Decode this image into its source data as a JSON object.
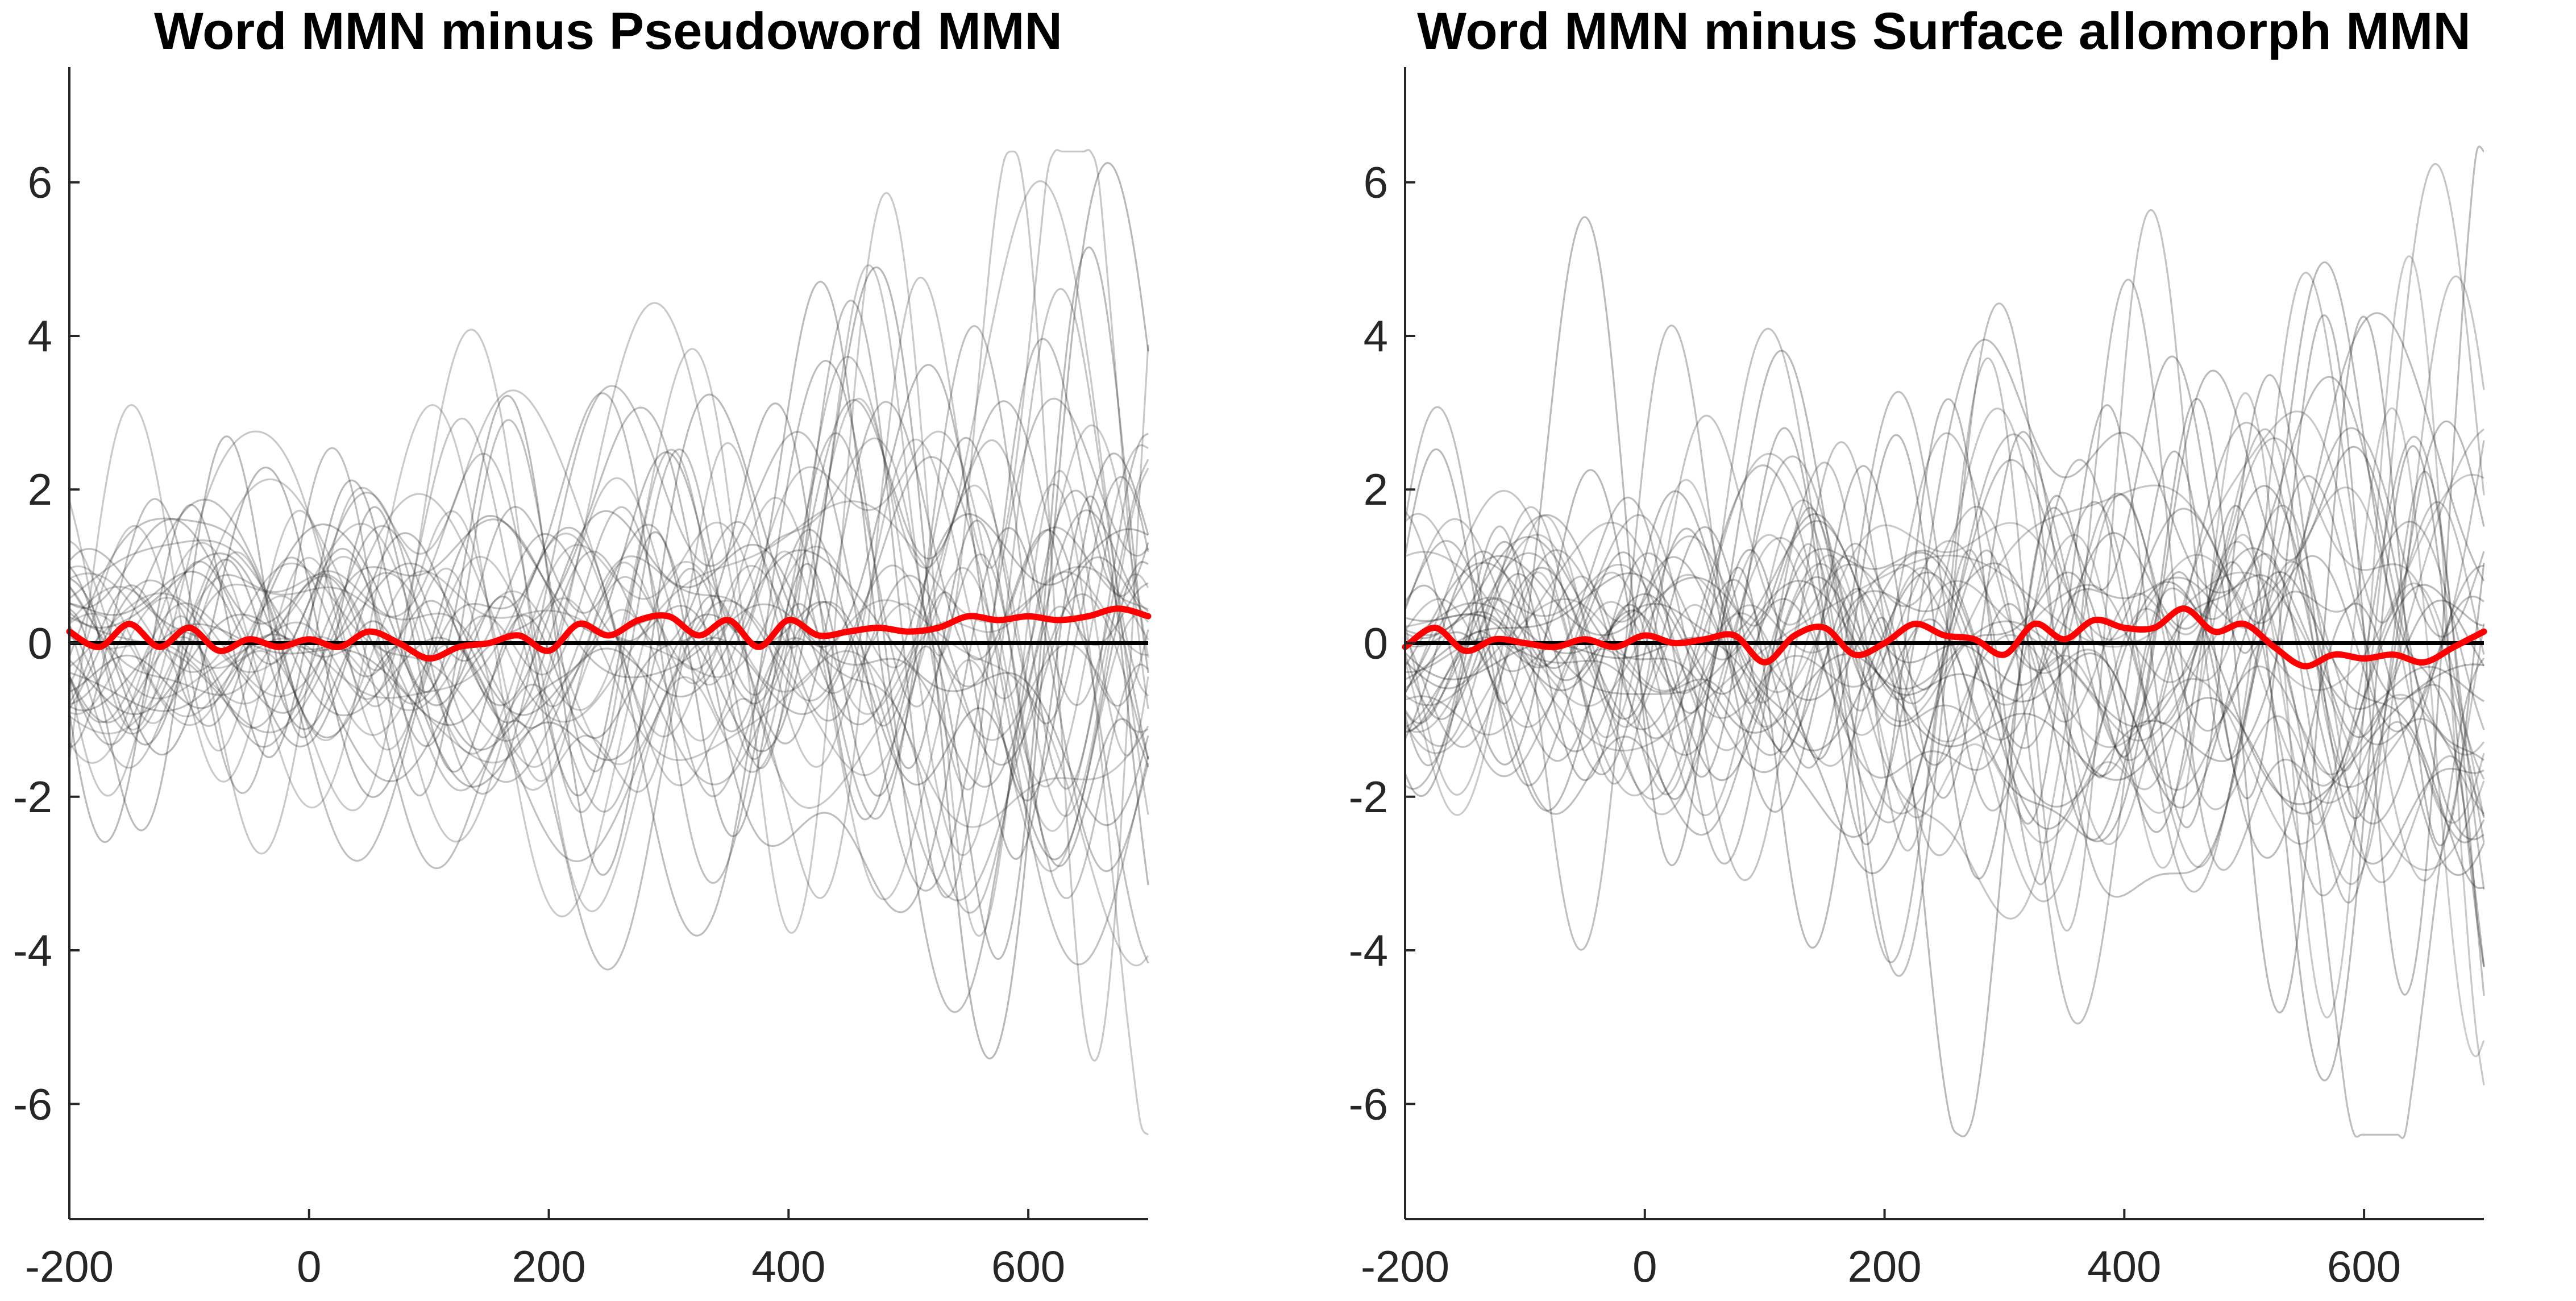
{
  "colors": {
    "background": "#ffffff",
    "axis": "#262626",
    "subject_traces": "#000000",
    "mean_trace": "#ff0000",
    "zero_line": "#000000"
  },
  "chart_data": [
    {
      "type": "line",
      "title": "Word MMN minus Pseudoword MMN",
      "xlabel": "",
      "ylabel": "",
      "xlim": [
        -200,
        700
      ],
      "ylim": [
        -7.5,
        7.5
      ],
      "x_ticks": [
        -200,
        0,
        200,
        400,
        600
      ],
      "x_tick_labels": [
        "-200",
        "0",
        "200",
        "400",
        "600"
      ],
      "y_ticks": [
        -6,
        -4,
        -2,
        0,
        2,
        4,
        6
      ],
      "y_tick_labels": [
        "-6",
        "-4",
        "-2",
        "0",
        "2",
        "4",
        "6"
      ],
      "grid": false,
      "legend": "none",
      "subject_series_count": 40,
      "subject_series_approx_range": [
        -5.6,
        6.3
      ],
      "reference_line": {
        "y": 0
      },
      "mean_series": {
        "x": [
          -200,
          -175,
          -150,
          -125,
          -100,
          -75,
          -50,
          -25,
          0,
          25,
          50,
          75,
          100,
          125,
          150,
          175,
          200,
          225,
          250,
          275,
          300,
          325,
          350,
          375,
          400,
          425,
          450,
          475,
          500,
          525,
          550,
          575,
          600,
          625,
          650,
          675,
          700
        ],
        "y": [
          0.15,
          -0.05,
          0.25,
          -0.05,
          0.2,
          -0.1,
          0.05,
          -0.05,
          0.05,
          -0.05,
          0.15,
          0.0,
          -0.2,
          -0.05,
          0.0,
          0.1,
          -0.1,
          0.25,
          0.1,
          0.3,
          0.35,
          0.1,
          0.3,
          -0.05,
          0.3,
          0.1,
          0.15,
          0.2,
          0.15,
          0.2,
          0.35,
          0.3,
          0.35,
          0.3,
          0.35,
          0.45,
          0.35
        ]
      }
    },
    {
      "type": "line",
      "title": "Word MMN minus Surface allomorph MMN",
      "xlabel": "",
      "ylabel": "",
      "xlim": [
        -200,
        700
      ],
      "ylim": [
        -7.5,
        7.5
      ],
      "x_ticks": [
        -200,
        0,
        200,
        400,
        600
      ],
      "x_tick_labels": [
        "-200",
        "0",
        "200",
        "400",
        "600"
      ],
      "y_ticks": [
        -6,
        -4,
        -2,
        0,
        2,
        4,
        6
      ],
      "y_tick_labels": [
        "-6",
        "-4",
        "-2",
        "0",
        "2",
        "4",
        "6"
      ],
      "grid": false,
      "legend": "none",
      "subject_series_count": 40,
      "subject_series_approx_range": [
        -6.3,
        6.0
      ],
      "reference_line": {
        "y": 0
      },
      "mean_series": {
        "x": [
          -200,
          -175,
          -150,
          -125,
          -100,
          -75,
          -50,
          -25,
          0,
          25,
          50,
          75,
          100,
          125,
          150,
          175,
          200,
          225,
          250,
          275,
          300,
          325,
          350,
          375,
          400,
          425,
          450,
          475,
          500,
          525,
          550,
          575,
          600,
          625,
          650,
          675,
          700
        ],
        "y": [
          -0.05,
          0.2,
          -0.1,
          0.05,
          0.0,
          -0.05,
          0.05,
          -0.05,
          0.1,
          0.0,
          0.05,
          0.1,
          -0.25,
          0.1,
          0.2,
          -0.15,
          0.0,
          0.25,
          0.1,
          0.05,
          -0.15,
          0.25,
          0.05,
          0.3,
          0.2,
          0.2,
          0.45,
          0.15,
          0.25,
          -0.05,
          -0.3,
          -0.15,
          -0.2,
          -0.15,
          -0.25,
          -0.05,
          0.15
        ]
      }
    }
  ]
}
